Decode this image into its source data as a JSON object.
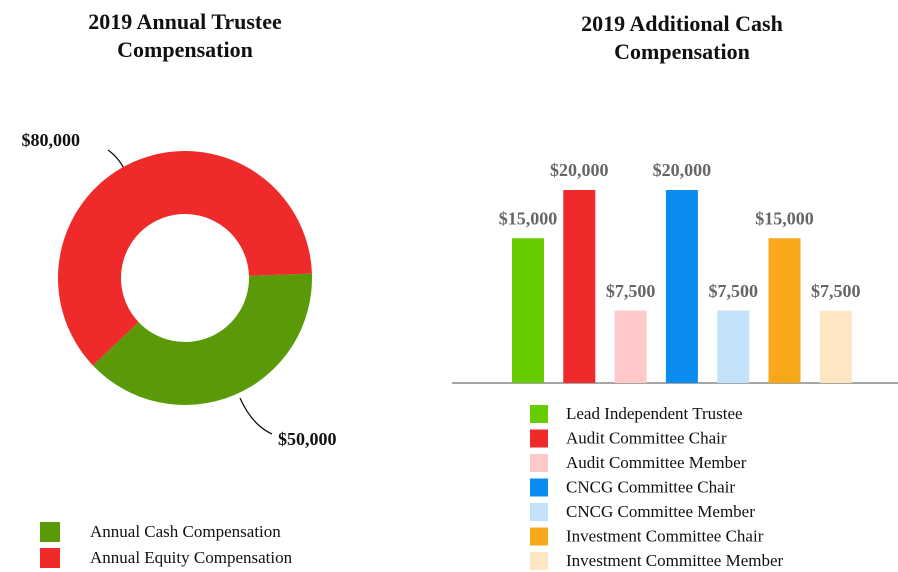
{
  "chart_data": [
    {
      "type": "donut",
      "title": "2019 Annual Trustee Compensation",
      "series": [
        {
          "name": "Annual Cash Compensation",
          "color": "#5a9a08",
          "values": [
            50000
          ],
          "value_labels": [
            "$50,000"
          ]
        },
        {
          "name": "Annual Equity Compensation",
          "color": "#ee2a2a",
          "values": [
            80000
          ],
          "value_labels": [
            "$80,000"
          ]
        }
      ]
    },
    {
      "type": "bar",
      "title": "2019 Additional Cash Compensation",
      "categories": [
        "Lead Independent Trustee",
        "Audit Committee Chair",
        "Audit Committee Member",
        "CNCG Committee Chair",
        "CNCG Committee Member",
        "Investment Committee Chair",
        "Investment Committee Member"
      ],
      "values": [
        15000,
        20000,
        7500,
        20000,
        7500,
        15000,
        7500
      ],
      "value_labels": [
        "$15,000",
        "$20,000",
        "$7,500",
        "$20,000",
        "$7,500",
        "$15,000",
        "$7,500"
      ],
      "colors": [
        "#66cc00",
        "#ee2a2a",
        "#ffc9c9",
        "#0a8cf0",
        "#c2e2fb",
        "#f8a81a",
        "#fde6c4"
      ]
    }
  ]
}
